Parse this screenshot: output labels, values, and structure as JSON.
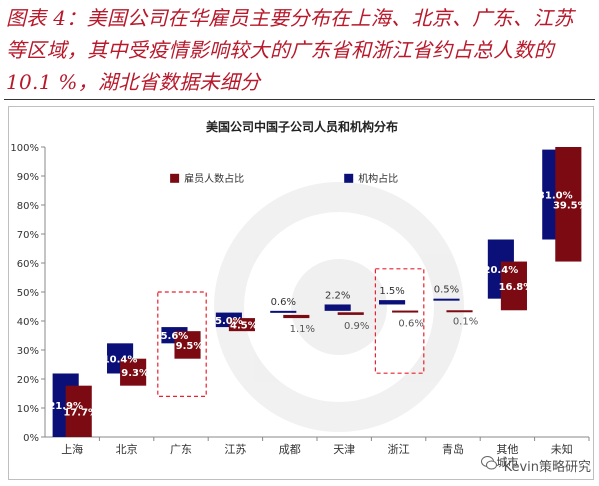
{
  "figure_caption": "图表 4：美国公司在华雇员主要分布在上海、北京、广东、江苏等区域，其中受疫情影响较大的广东省和浙江省约占总人数的 10.1 %，湖北省数据未细分",
  "watermark": "Kevin策略研究",
  "colors": {
    "employees": "#7b0a12",
    "institutions": "#0b1078",
    "highlight_box": "#e8222e",
    "caption": "#b8192b"
  },
  "chart_data": {
    "type": "waterfall-bar",
    "title": "美国公司中国子公司人员和机构分布",
    "categories": [
      "上海",
      "北京",
      "广东",
      "江苏",
      "成都",
      "天津",
      "浙江",
      "青岛",
      "其他城市",
      "未知"
    ],
    "category_labels": [
      "上海",
      "北京",
      "广东",
      "江苏",
      "成都",
      "天津",
      "浙江",
      "青岛",
      "其他\n城市",
      "未知"
    ],
    "series": [
      {
        "name": "雇员人数占比",
        "color": "#7b0a12",
        "values": [
          17.7,
          9.3,
          9.5,
          4.5,
          1.1,
          0.9,
          0.6,
          0.1,
          16.8,
          39.5
        ],
        "cumulative_start": [
          0,
          17.7,
          27.0,
          36.5,
          41.0,
          42.1,
          43.0,
          43.6,
          43.7,
          60.5
        ]
      },
      {
        "name": "机构占比",
        "color": "#0b1078",
        "values": [
          21.9,
          10.4,
          5.6,
          5.0,
          0.6,
          2.2,
          1.5,
          0.5,
          20.4,
          31.0
        ],
        "cumulative_start": [
          0,
          21.9,
          32.3,
          37.9,
          42.9,
          43.5,
          45.7,
          47.2,
          47.7,
          68.1
        ]
      }
    ],
    "value_labels": {
      "雇员人数占比": [
        "17.7%",
        "9.3%",
        "9.5%",
        "4.5%",
        "1.1%",
        "0.9%",
        "0.6%",
        "0.1%",
        "16.8%",
        "39.5%"
      ],
      "机构占比": [
        "21.9%",
        "10.4%",
        "5.6%",
        "5.0%",
        "0.6%",
        "2.2%",
        "1.5%",
        "0.5%",
        "20.4%",
        "31.0%"
      ]
    },
    "highlighted_categories": [
      "广东",
      "浙江"
    ],
    "ylim": [
      0,
      100
    ],
    "yticks": [
      0,
      10,
      20,
      30,
      40,
      50,
      60,
      70,
      80,
      90,
      100
    ],
    "ytick_labels": [
      "0%",
      "10%",
      "20%",
      "30%",
      "40%",
      "50%",
      "60%",
      "70%",
      "80%",
      "90%",
      "100%"
    ],
    "legend_position": "upper-center",
    "grid": false
  }
}
